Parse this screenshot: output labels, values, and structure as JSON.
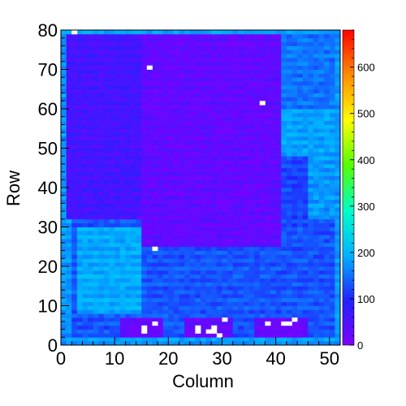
{
  "chart_data": {
    "type": "heatmap",
    "title": "",
    "xlabel": "Column",
    "ylabel": "Row",
    "xlim": [
      0,
      52
    ],
    "ylim": [
      0,
      80
    ],
    "x_ticks": [
      0,
      10,
      20,
      30,
      40,
      50
    ],
    "y_ticks": [
      0,
      10,
      20,
      30,
      40,
      50,
      60,
      70,
      80
    ],
    "colorbar": {
      "range": [
        0,
        680
      ],
      "ticks": [
        0,
        100,
        200,
        300,
        400,
        500,
        600
      ],
      "colors": [
        "#7f00ff",
        "#2222ff",
        "#00b4ff",
        "#00ffc8",
        "#55ff00",
        "#ffff00",
        "#ff8c00",
        "#ff0000"
      ]
    },
    "grid": false,
    "empty_cells": [
      [
        2,
        79
      ],
      [
        16,
        70
      ],
      [
        37,
        61
      ],
      [
        17,
        24
      ],
      [
        15,
        4
      ],
      [
        15,
        3
      ],
      [
        17,
        5
      ],
      [
        25,
        4
      ],
      [
        25,
        3
      ],
      [
        27,
        3
      ],
      [
        28,
        4
      ],
      [
        28,
        3
      ],
      [
        29,
        2
      ],
      [
        30,
        6
      ],
      [
        38,
        5
      ],
      [
        41,
        5
      ],
      [
        42,
        5
      ],
      [
        43,
        6
      ]
    ],
    "regions": [
      {
        "desc": "frame",
        "x": [
          0,
          52
        ],
        "y": [
          0,
          80
        ],
        "value": 175
      },
      {
        "desc": "lower blue",
        "x": [
          2,
          51
        ],
        "y": [
          2,
          32
        ],
        "value": 130
      },
      {
        "desc": "cyan patches",
        "x": [
          3,
          15
        ],
        "y": [
          8,
          30
        ],
        "value": 190
      },
      {
        "desc": "upper band",
        "x": [
          1,
          41
        ],
        "y": [
          32,
          79
        ],
        "value": 60
      },
      {
        "desc": "purple core",
        "x": [
          15,
          41
        ],
        "y": [
          25,
          79
        ],
        "value": 30
      },
      {
        "desc": "right blue",
        "x": [
          41,
          46
        ],
        "y": [
          30,
          48
        ],
        "value": 120
      },
      {
        "desc": "right cyan",
        "x": [
          41,
          51
        ],
        "y": [
          48,
          72
        ],
        "value": 185
      },
      {
        "desc": "right checker",
        "x": [
          41,
          51
        ],
        "y": [
          60,
          79
        ],
        "value": 150
      },
      {
        "desc": "chip pad 1",
        "x": [
          11,
          19
        ],
        "y": [
          2,
          7
        ],
        "value": 25
      },
      {
        "desc": "chip pad 2",
        "x": [
          23,
          32
        ],
        "y": [
          2,
          7
        ],
        "value": 25
      },
      {
        "desc": "chip pad 3",
        "x": [
          36,
          46
        ],
        "y": [
          2,
          7
        ],
        "value": 25
      }
    ]
  }
}
